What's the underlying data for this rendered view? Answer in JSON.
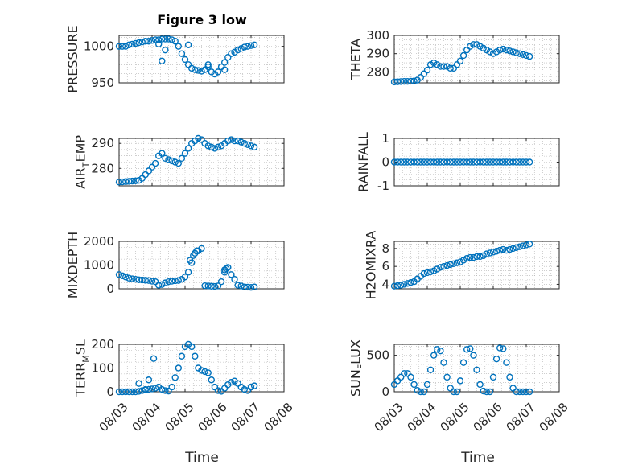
{
  "figure": {
    "title": "Figure 3 low",
    "xlabel": "Time",
    "x_ticks": [
      "08/03",
      "08/04",
      "08/05",
      "08/06",
      "08/07",
      "08/08"
    ]
  },
  "colors": {
    "marker": "#0072BD",
    "axis": "#262626",
    "grid": "#b0b0b0"
  },
  "chart_data": [
    {
      "type": "scatter",
      "ylabel": "PRESSURE",
      "title": "Figure 3 low",
      "xlim": [
        0,
        5
      ],
      "ylim": [
        950,
        1015
      ],
      "yticks": [
        950,
        1000
      ],
      "x": [
        0,
        0.1,
        0.2,
        0.3,
        0.4,
        0.5,
        0.6,
        0.7,
        0.8,
        0.9,
        1.0,
        1.1,
        1.2,
        1.3,
        1.4,
        1.5,
        1.6,
        1.7,
        1.8,
        1.9,
        2.0,
        2.1,
        2.2,
        2.3,
        2.4,
        2.5,
        2.6,
        2.7,
        2.8,
        2.9,
        3.0,
        3.1,
        3.2,
        3.3,
        3.4,
        3.5,
        3.6,
        3.7,
        3.8,
        3.9,
        4.0,
        4.1,
        1.2,
        1.3,
        1.4,
        2.1,
        2.7,
        3.2
      ],
      "y": [
        1000,
        1000,
        1000,
        1002,
        1003,
        1004,
        1005,
        1006,
        1007,
        1007,
        1008,
        1009,
        1009,
        1010,
        1010,
        1010,
        1009,
        1007,
        1000,
        990,
        982,
        975,
        970,
        968,
        967,
        966,
        968,
        972,
        965,
        962,
        965,
        972,
        978,
        985,
        990,
        992,
        995,
        997,
        999,
        1000,
        1001,
        1002,
        1003,
        980,
        995,
        1002,
        975,
        968
      ]
    },
    {
      "type": "scatter",
      "ylabel": "THETA",
      "xlim": [
        0,
        5
      ],
      "ylim": [
        274,
        300
      ],
      "yticks": [
        280,
        290,
        300
      ],
      "x": [
        0,
        0.1,
        0.2,
        0.3,
        0.4,
        0.5,
        0.6,
        0.7,
        0.8,
        0.9,
        1.0,
        1.1,
        1.2,
        1.3,
        1.4,
        1.5,
        1.6,
        1.7,
        1.8,
        1.9,
        2.0,
        2.1,
        2.2,
        2.3,
        2.4,
        2.5,
        2.6,
        2.7,
        2.8,
        2.9,
        3.0,
        3.1,
        3.2,
        3.3,
        3.4,
        3.5,
        3.6,
        3.7,
        3.8,
        3.9,
        4.0,
        4.1
      ],
      "y": [
        274.5,
        274.6,
        274.7,
        274.8,
        274.8,
        274.9,
        275,
        275.5,
        277,
        279,
        281,
        284,
        285,
        284,
        283,
        283,
        283,
        282,
        282,
        284,
        286,
        289,
        292,
        294,
        295,
        295,
        294,
        293,
        292,
        291,
        290,
        291,
        292,
        292.5,
        292,
        291.5,
        291,
        290.5,
        290,
        289.5,
        289,
        288.5
      ]
    },
    {
      "type": "scatter",
      "ylabel": "AIR_TEMP",
      "xlim": [
        0,
        5
      ],
      "ylim": [
        273,
        292
      ],
      "yticks": [
        280,
        290
      ],
      "x": [
        0,
        0.1,
        0.2,
        0.3,
        0.4,
        0.5,
        0.6,
        0.7,
        0.8,
        0.9,
        1.0,
        1.1,
        1.2,
        1.3,
        1.4,
        1.5,
        1.6,
        1.7,
        1.8,
        1.9,
        2.0,
        2.1,
        2.2,
        2.3,
        2.4,
        2.5,
        2.6,
        2.7,
        2.8,
        2.9,
        3.0,
        3.1,
        3.2,
        3.3,
        3.4,
        3.5,
        3.6,
        3.7,
        3.8,
        3.9,
        4.0,
        4.1
      ],
      "y": [
        274.5,
        274.6,
        274.7,
        274.8,
        274.9,
        275,
        275.2,
        276,
        277.5,
        279,
        280.5,
        282,
        285,
        286,
        284,
        283.5,
        283,
        282.5,
        282,
        284,
        286,
        288,
        290,
        291,
        292,
        291.5,
        290,
        289,
        288.5,
        288,
        288.5,
        289,
        290,
        291,
        291.5,
        291,
        291,
        290.5,
        290,
        289.5,
        289,
        288.5
      ]
    },
    {
      "type": "scatter",
      "ylabel": "RAINFALL",
      "xlim": [
        0,
        5
      ],
      "ylim": [
        -1,
        1
      ],
      "yticks": [
        -1,
        0,
        1
      ],
      "x": [
        0,
        0.1,
        0.2,
        0.3,
        0.4,
        0.5,
        0.6,
        0.7,
        0.8,
        0.9,
        1.0,
        1.1,
        1.2,
        1.3,
        1.4,
        1.5,
        1.6,
        1.7,
        1.8,
        1.9,
        2.0,
        2.1,
        2.2,
        2.3,
        2.4,
        2.5,
        2.6,
        2.7,
        2.8,
        2.9,
        3.0,
        3.1,
        3.2,
        3.3,
        3.4,
        3.5,
        3.6,
        3.7,
        3.8,
        3.9,
        4.0,
        4.1
      ],
      "y": [
        0,
        0,
        0,
        0,
        0,
        0,
        0,
        0,
        0,
        0,
        0,
        0,
        0,
        0,
        0,
        0,
        0,
        0,
        0,
        0,
        0,
        0,
        0,
        0,
        0,
        0,
        0,
        0,
        0,
        0,
        0,
        0,
        0,
        0,
        0,
        0,
        0,
        0,
        0,
        0,
        0,
        0
      ]
    },
    {
      "type": "scatter",
      "ylabel": "MIXDEPTH",
      "xlim": [
        0,
        5
      ],
      "ylim": [
        0,
        2000
      ],
      "yticks": [
        0,
        1000,
        2000
      ],
      "x": [
        0,
        0.1,
        0.2,
        0.3,
        0.4,
        0.5,
        0.6,
        0.7,
        0.8,
        0.9,
        1.0,
        1.1,
        1.2,
        1.3,
        1.4,
        1.5,
        1.6,
        1.7,
        1.8,
        1.9,
        2.0,
        2.1,
        2.2,
        2.3,
        2.4,
        2.5,
        2.6,
        2.7,
        2.8,
        2.9,
        3.0,
        3.1,
        3.2,
        3.3,
        3.4,
        3.5,
        3.6,
        3.7,
        3.8,
        3.9,
        4.0,
        4.1,
        2.15,
        2.25,
        2.35,
        3.2,
        3.25
      ],
      "y": [
        600,
        550,
        500,
        450,
        420,
        400,
        380,
        370,
        360,
        350,
        320,
        300,
        150,
        180,
        250,
        300,
        320,
        340,
        350,
        400,
        500,
        700,
        1100,
        1500,
        1600,
        1700,
        130,
        120,
        110,
        100,
        120,
        300,
        800,
        900,
        600,
        400,
        150,
        120,
        80,
        70,
        60,
        80,
        1200,
        1400,
        1600,
        700,
        850
      ]
    },
    {
      "type": "scatter",
      "ylabel": "H2OMIXRA",
      "xlim": [
        0,
        5
      ],
      "ylim": [
        3.5,
        8.8
      ],
      "yticks": [
        4,
        6,
        8
      ],
      "x": [
        0,
        0.1,
        0.2,
        0.3,
        0.4,
        0.5,
        0.6,
        0.7,
        0.8,
        0.9,
        1.0,
        1.1,
        1.2,
        1.3,
        1.4,
        1.5,
        1.6,
        1.7,
        1.8,
        1.9,
        2.0,
        2.1,
        2.2,
        2.3,
        2.4,
        2.5,
        2.6,
        2.7,
        2.8,
        2.9,
        3.0,
        3.1,
        3.2,
        3.3,
        3.4,
        3.5,
        3.6,
        3.7,
        3.8,
        3.9,
        4.0,
        4.1
      ],
      "y": [
        3.8,
        3.85,
        3.9,
        4.0,
        4.1,
        4.2,
        4.3,
        4.6,
        4.9,
        5.2,
        5.3,
        5.4,
        5.5,
        5.7,
        5.9,
        6.0,
        6.1,
        6.2,
        6.3,
        6.4,
        6.5,
        6.7,
        6.9,
        7.0,
        7.0,
        7.1,
        7.1,
        7.2,
        7.4,
        7.5,
        7.6,
        7.7,
        7.8,
        7.9,
        7.8,
        7.9,
        8.0,
        8.1,
        8.2,
        8.3,
        8.4,
        8.5
      ]
    },
    {
      "type": "scatter",
      "ylabel": "TERR_MSL",
      "xlim": [
        0,
        5
      ],
      "ylim": [
        0,
        200
      ],
      "yticks": [
        0,
        100,
        200
      ],
      "x": [
        0,
        0.1,
        0.2,
        0.3,
        0.4,
        0.5,
        0.6,
        0.7,
        0.8,
        0.9,
        1.0,
        1.1,
        1.2,
        1.3,
        1.4,
        1.5,
        1.6,
        1.7,
        1.8,
        1.9,
        2.0,
        2.1,
        2.2,
        2.3,
        2.4,
        2.5,
        2.6,
        2.7,
        2.8,
        2.9,
        3.0,
        3.1,
        3.2,
        3.3,
        3.4,
        3.5,
        3.6,
        3.7,
        3.8,
        3.9,
        4.0,
        4.1,
        0.6,
        0.9,
        1.05,
        0.8
      ],
      "y": [
        0,
        0,
        0,
        0,
        0,
        0,
        2,
        5,
        8,
        10,
        12,
        15,
        20,
        10,
        5,
        3,
        20,
        60,
        100,
        150,
        190,
        200,
        190,
        150,
        100,
        90,
        85,
        80,
        50,
        20,
        5,
        2,
        15,
        30,
        40,
        45,
        35,
        20,
        10,
        5,
        20,
        25,
        35,
        50,
        140,
        10
      ]
    },
    {
      "type": "scatter",
      "ylabel": "SUN_FLUX",
      "xlim": [
        0,
        5
      ],
      "ylim": [
        0,
        650
      ],
      "yticks": [
        0,
        500
      ],
      "x": [
        0,
        0.1,
        0.2,
        0.3,
        0.4,
        0.5,
        0.6,
        0.7,
        0.8,
        0.9,
        1.0,
        1.1,
        1.2,
        1.3,
        1.4,
        1.5,
        1.6,
        1.7,
        1.8,
        1.9,
        2.0,
        2.1,
        2.2,
        2.3,
        2.4,
        2.5,
        2.6,
        2.7,
        2.8,
        2.9,
        3.0,
        3.1,
        3.2,
        3.3,
        3.4,
        3.5,
        3.6,
        3.7,
        3.8,
        3.9,
        4.0,
        4.1
      ],
      "y": [
        100,
        150,
        200,
        250,
        250,
        200,
        100,
        20,
        0,
        0,
        100,
        300,
        500,
        580,
        560,
        400,
        200,
        50,
        0,
        0,
        150,
        400,
        580,
        590,
        500,
        300,
        100,
        10,
        0,
        0,
        200,
        450,
        600,
        590,
        400,
        200,
        50,
        0,
        0,
        0,
        0,
        0
      ]
    }
  ]
}
